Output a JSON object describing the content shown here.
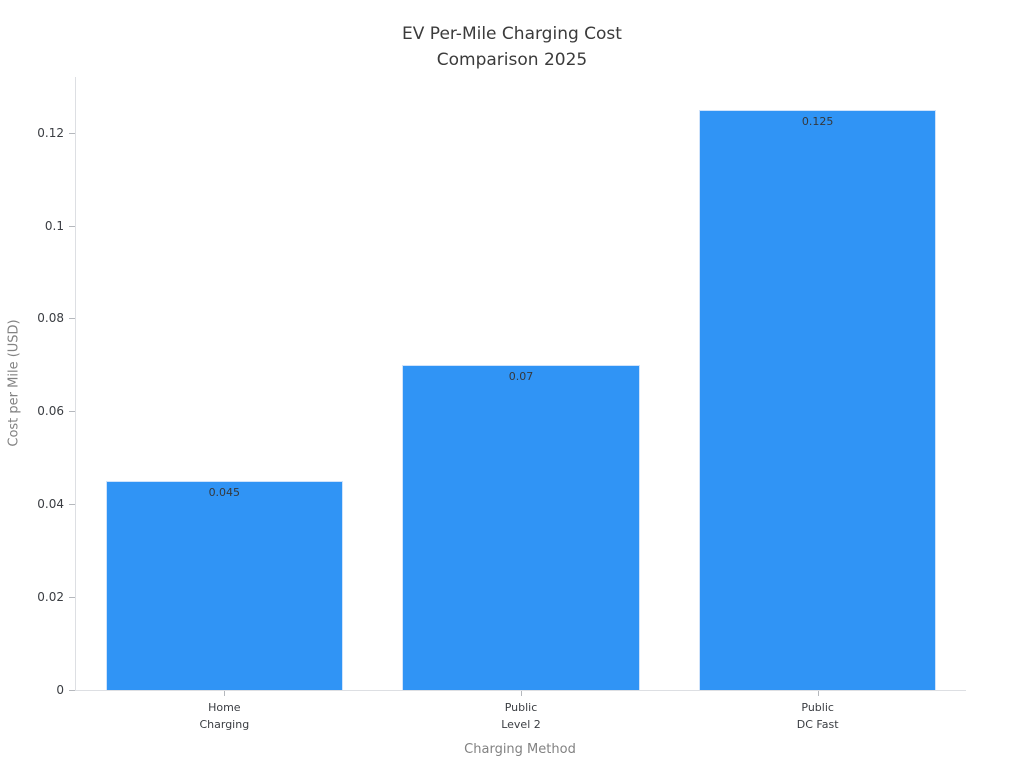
{
  "chart_data": {
    "type": "bar",
    "title": "EV Per-Mile Charging Cost\nComparison 2025",
    "xlabel": "Charging Method",
    "ylabel": "Cost per Mile (USD)",
    "categories": [
      "Home\nCharging",
      "Public\nLevel 2",
      "Public\nDC Fast"
    ],
    "values": [
      0.045,
      0.07,
      0.125
    ],
    "value_labels": [
      "0.045",
      "0.07",
      "0.125"
    ],
    "yticks": [
      {
        "label": "0",
        "value": 0
      },
      {
        "label": "0.02",
        "value": 0.02
      },
      {
        "label": "0.04",
        "value": 0.04
      },
      {
        "label": "0.06",
        "value": 0.06
      },
      {
        "label": "0.08",
        "value": 0.08
      },
      {
        "label": "0.1",
        "value": 0.1
      },
      {
        "label": "0.12",
        "value": 0.12
      }
    ],
    "ylim": [
      0,
      0.132
    ],
    "bar_color": "#3094f5",
    "bar_edge_color": "#cfe3fb",
    "grid": false,
    "legend": "none"
  }
}
